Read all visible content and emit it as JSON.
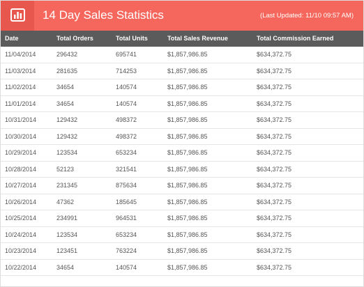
{
  "header": {
    "title": "14 Day Sales Statistics",
    "last_updated": "(Last Updated: 11/10 09:57 AM)",
    "icon": "bar-chart-icon"
  },
  "table": {
    "columns": [
      "Date",
      "Total Orders",
      "Total Units",
      "Total Sales Revenue",
      "Total Commission Earned"
    ],
    "rows": [
      [
        "11/04/2014",
        "296432",
        "695741",
        "$1,857,986.85",
        "$634,372.75"
      ],
      [
        "11/03/2014",
        "281635",
        "714253",
        "$1,857,986.85",
        "$634,372.75"
      ],
      [
        "11/02/2014",
        "34654",
        "140574",
        "$1,857,986.85",
        "$634,372.75"
      ],
      [
        "11/01/2014",
        "34654",
        "140574",
        "$1,857,986.85",
        "$634,372.75"
      ],
      [
        "10/31/2014",
        "129432",
        "498372",
        "$1,857,986.85",
        "$634,372.75"
      ],
      [
        "10/30/2014",
        "129432",
        "498372",
        "$1,857,986.85",
        "$634,372.75"
      ],
      [
        "10/29/2014",
        "123534",
        "653234",
        "$1,857,986.85",
        "$634,372.75"
      ],
      [
        "10/28/2014",
        "52123",
        "321541",
        "$1,857,986.85",
        "$634,372.75"
      ],
      [
        "10/27/2014",
        "231345",
        "875634",
        "$1,857,986.85",
        "$634,372.75"
      ],
      [
        "10/26/2014",
        "47362",
        "185645",
        "$1,857,986.85",
        "$634,372.75"
      ],
      [
        "10/25/2014",
        "234991",
        "964531",
        "$1,857,986.85",
        "$634,372.75"
      ],
      [
        "10/24/2014",
        "123534",
        "653234",
        "$1,857,986.85",
        "$634,372.75"
      ],
      [
        "10/23/2014",
        "123451",
        "763224",
        "$1,857,986.85",
        "$634,372.75"
      ],
      [
        "10/22/2014",
        "34654",
        "140574",
        "$1,857,986.85",
        "$634,372.75"
      ]
    ]
  },
  "colors": {
    "header_bg": "#f5675c",
    "header_icon_bg": "#e8574d",
    "column_header_bg": "#5b5b5b",
    "row_text": "#555555"
  }
}
